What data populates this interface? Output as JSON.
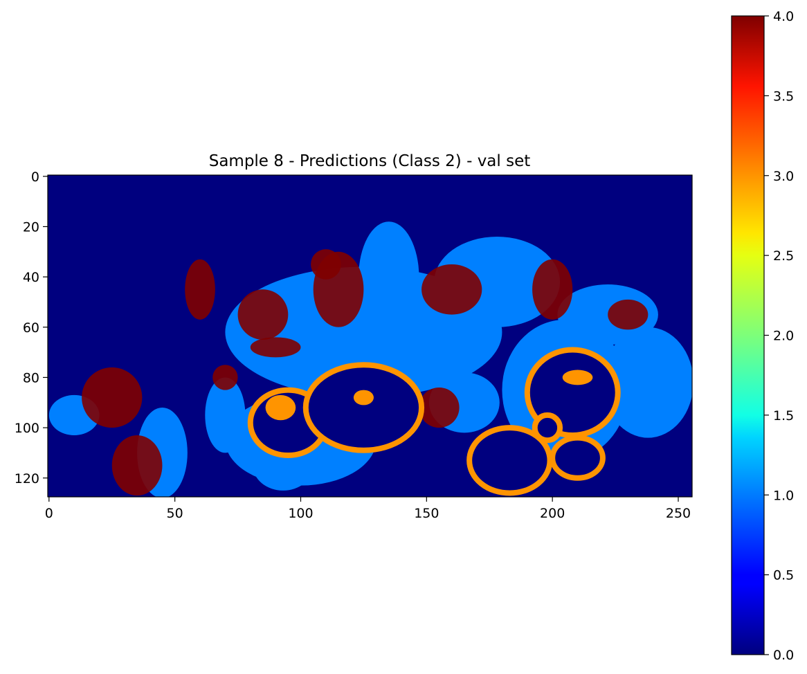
{
  "chart_data": {
    "type": "heatmap",
    "title": "Sample 8 - Predictions (Class 2) - val set",
    "xlabel": "",
    "ylabel": "",
    "image_shape": [
      128,
      256
    ],
    "xlim": [
      -0.5,
      255.5
    ],
    "ylim": [
      127.5,
      -0.5
    ],
    "x_ticks": [
      0,
      50,
      100,
      150,
      200,
      250
    ],
    "y_ticks": [
      0,
      20,
      40,
      60,
      80,
      100,
      120
    ],
    "colormap": "jet",
    "colorbar": {
      "range": [
        0.0,
        4.0
      ],
      "ticks": [
        "0.0",
        "0.5",
        "1.0",
        "1.5",
        "2.0",
        "2.5",
        "3.0",
        "3.5",
        "4.0"
      ]
    },
    "classes_present": [
      {
        "value": 0,
        "color": "#00007f"
      },
      {
        "value": 1,
        "color": "#0080ff"
      },
      {
        "value": 3,
        "color": "#ff9400"
      },
      {
        "value": 4,
        "color": "#7f0000"
      }
    ],
    "regions": {
      "tissue_blobs_value_1": [
        {
          "cx": 125,
          "cy": 62,
          "rx": 55,
          "ry": 26
        },
        {
          "cx": 100,
          "cy": 105,
          "rx": 30,
          "ry": 18
        },
        {
          "cx": 135,
          "cy": 40,
          "rx": 12,
          "ry": 22
        },
        {
          "cx": 178,
          "cy": 42,
          "rx": 25,
          "ry": 18
        },
        {
          "cx": 222,
          "cy": 55,
          "rx": 20,
          "ry": 12
        },
        {
          "cx": 238,
          "cy": 82,
          "rx": 18,
          "ry": 22
        },
        {
          "cx": 165,
          "cy": 90,
          "rx": 14,
          "ry": 12
        },
        {
          "cx": 205,
          "cy": 85,
          "rx": 25,
          "ry": 28
        },
        {
          "cx": 45,
          "cy": 110,
          "rx": 10,
          "ry": 18
        },
        {
          "cx": 10,
          "cy": 95,
          "rx": 10,
          "ry": 8
        },
        {
          "cx": 70,
          "cy": 95,
          "rx": 8,
          "ry": 15
        },
        {
          "cx": 93,
          "cy": 115,
          "rx": 12,
          "ry": 10
        },
        {
          "cx": 160,
          "cy": 70,
          "rx": 10,
          "ry": 10
        }
      ],
      "tissue_blobs_value_4": [
        {
          "cx": 25,
          "cy": 88,
          "rx": 12,
          "ry": 12
        },
        {
          "cx": 35,
          "cy": 115,
          "rx": 10,
          "ry": 12
        },
        {
          "cx": 60,
          "cy": 45,
          "rx": 6,
          "ry": 12
        },
        {
          "cx": 85,
          "cy": 55,
          "rx": 10,
          "ry": 10
        },
        {
          "cx": 115,
          "cy": 45,
          "rx": 10,
          "ry": 15
        },
        {
          "cx": 110,
          "cy": 35,
          "rx": 6,
          "ry": 6
        },
        {
          "cx": 160,
          "cy": 45,
          "rx": 12,
          "ry": 10
        },
        {
          "cx": 200,
          "cy": 45,
          "rx": 8,
          "ry": 12
        },
        {
          "cx": 230,
          "cy": 55,
          "rx": 8,
          "ry": 6
        },
        {
          "cx": 90,
          "cy": 68,
          "rx": 10,
          "ry": 4
        },
        {
          "cx": 155,
          "cy": 92,
          "rx": 8,
          "ry": 8
        },
        {
          "cx": 70,
          "cy": 80,
          "rx": 5,
          "ry": 5
        }
      ],
      "rings_value_3": [
        {
          "cx": 95,
          "cy": 98,
          "rx": 15,
          "ry": 13
        },
        {
          "cx": 125,
          "cy": 92,
          "rx": 23,
          "ry": 17
        },
        {
          "cx": 208,
          "cy": 86,
          "rx": 18,
          "ry": 17
        },
        {
          "cx": 183,
          "cy": 113,
          "rx": 16,
          "ry": 13
        },
        {
          "cx": 210,
          "cy": 112,
          "rx": 10,
          "ry": 8
        },
        {
          "cx": 198,
          "cy": 100,
          "rx": 5,
          "ry": 5
        }
      ],
      "inner_fill_value_3": [
        {
          "cx": 92,
          "cy": 92,
          "rx": 6,
          "ry": 5
        },
        {
          "cx": 125,
          "cy": 88,
          "rx": 4,
          "ry": 3
        },
        {
          "cx": 210,
          "cy": 80,
          "rx": 6,
          "ry": 3
        }
      ]
    }
  }
}
